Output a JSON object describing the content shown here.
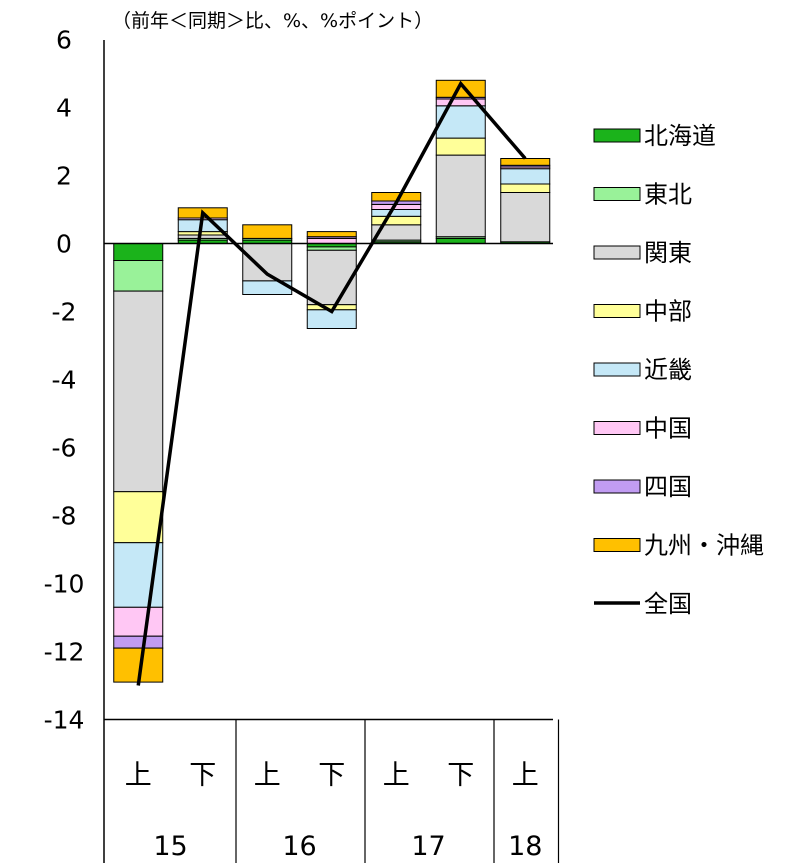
{
  "chart_data": {
    "type": "bar",
    "unit_label": "（前年＜同期＞比、%、%ポイント）",
    "ylim": [
      -14,
      6
    ],
    "y_ticks": [
      "6",
      "4",
      "2",
      "0",
      "-2",
      "-4",
      "-6",
      "-8",
      "-10",
      "-12",
      "-14"
    ],
    "categories": [
      "15上",
      "15下",
      "16上",
      "16下",
      "17上",
      "17下",
      "18上"
    ],
    "period_labels": [
      "上",
      "下",
      "上",
      "下",
      "上",
      "下",
      "上"
    ],
    "year_groups": [
      {
        "label": "15",
        "span": 2
      },
      {
        "label": "16",
        "span": 2
      },
      {
        "label": "17",
        "span": 2
      },
      {
        "label": "18",
        "span": 1
      }
    ],
    "series": [
      {
        "name": "北海道",
        "color": "#1bb31b",
        "values": [
          -0.5,
          0.1,
          0.1,
          -0.1,
          0.05,
          0.15,
          0.05
        ]
      },
      {
        "name": "東北",
        "color": "#99f299",
        "values": [
          -0.9,
          0.05,
          0.05,
          -0.1,
          0.05,
          0.05,
          0.0
        ]
      },
      {
        "name": "関東",
        "color": "#d9d9d9",
        "values": [
          -5.9,
          0.1,
          -1.1,
          -1.6,
          0.45,
          2.4,
          1.45
        ]
      },
      {
        "name": "中部",
        "color": "#ffff99",
        "values": [
          -1.5,
          0.1,
          0.0,
          -0.15,
          0.25,
          0.5,
          0.25
        ]
      },
      {
        "name": "近畿",
        "color": "#c5e8f7",
        "values": [
          -1.9,
          0.35,
          -0.4,
          -0.55,
          0.2,
          0.95,
          0.45
        ]
      },
      {
        "name": "中国",
        "color": "#ffc7f4",
        "values": [
          -0.85,
          0.05,
          0.0,
          0.15,
          0.15,
          0.2,
          0.05
        ]
      },
      {
        "name": "四国",
        "color": "#c19cf2",
        "values": [
          -0.35,
          0.0,
          0.0,
          0.05,
          0.1,
          0.05,
          0.05
        ]
      },
      {
        "name": "九州・沖縄",
        "color": "#ffc000",
        "values": [
          -1.0,
          0.3,
          0.4,
          0.15,
          0.25,
          0.5,
          0.2
        ]
      }
    ],
    "total_series": {
      "name": "全国",
      "color": "#000000",
      "values": [
        -13.0,
        0.9,
        -0.9,
        -2.0,
        1.2,
        4.7,
        2.5
      ]
    },
    "legend_position": "right",
    "grid": false
  }
}
